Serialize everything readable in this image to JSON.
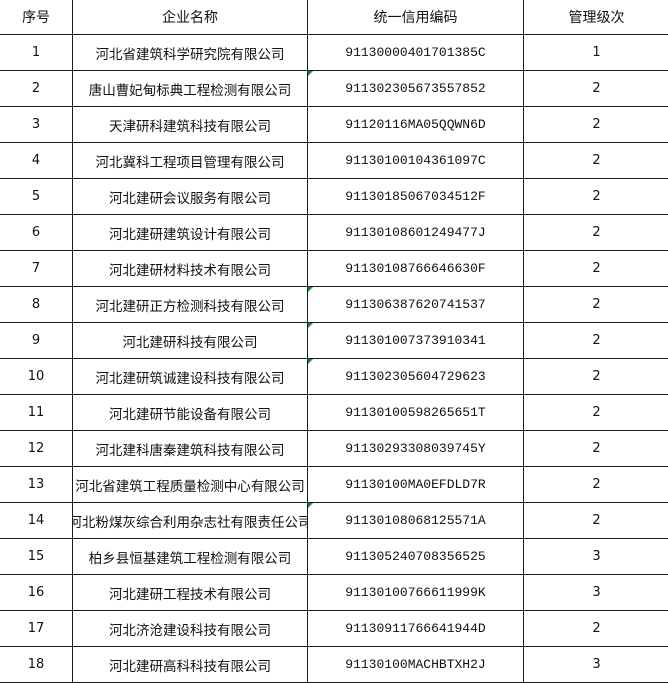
{
  "header": {
    "index": "序号",
    "name": "企业名称",
    "code": "统一信用编码",
    "level": "管理级次"
  },
  "rows": [
    {
      "index": "1",
      "name": "河北省建筑科学研究院有限公司",
      "code": "91130000401701385C",
      "level": "1"
    },
    {
      "index": "2",
      "name": "唐山曹妃甸标典工程检测有限公司",
      "code": "911302305673557852",
      "level": "2"
    },
    {
      "index": "3",
      "name": "天津研科建筑科技有限公司",
      "code": "91120116MA05QQWN6D",
      "level": "2"
    },
    {
      "index": "4",
      "name": "河北冀科工程项目管理有限公司",
      "code": "91130100104361097C",
      "level": "2"
    },
    {
      "index": "5",
      "name": "河北建研会议服务有限公司",
      "code": "91130185067034512F",
      "level": "2"
    },
    {
      "index": "6",
      "name": "河北建研建筑设计有限公司",
      "code": "91130108601249477J",
      "level": "2"
    },
    {
      "index": "7",
      "name": "河北建研材料技术有限公司",
      "code": "91130108766646630F",
      "level": "2"
    },
    {
      "index": "8",
      "name": "河北建研正方检测科技有限公司",
      "code": "911306387620741537",
      "level": "2"
    },
    {
      "index": "9",
      "name": "河北建研科技有限公司",
      "code": "911301007373910341",
      "level": "2"
    },
    {
      "index": "10",
      "name": "河北建研筑诚建设科技有限公司",
      "code": "911302305604729623",
      "level": "2"
    },
    {
      "index": "11",
      "name": "河北建研节能设备有限公司",
      "code": "91130100598265651T",
      "level": "2"
    },
    {
      "index": "12",
      "name": "河北建科唐秦建筑科技有限公司",
      "code": "91130293308039745Y",
      "level": "2"
    },
    {
      "index": "13",
      "name": "河北省建筑工程质量检测中心有限公司",
      "code": "91130100MA0EFDLD7R",
      "level": "2"
    },
    {
      "index": "14",
      "name": "河北粉煤灰综合利用杂志社有限责任公司",
      "code": "91130108068125571A",
      "level": "2"
    },
    {
      "index": "15",
      "name": "柏乡县恒基建筑工程检测有限公司",
      "code": "911305240708356525",
      "level": "3"
    },
    {
      "index": "16",
      "name": "河北建研工程技术有限公司",
      "code": "91130100766611999K",
      "level": "3"
    },
    {
      "index": "17",
      "name": "河北济沧建设科技有限公司",
      "code": "91130911766641944D",
      "level": "2"
    },
    {
      "index": "18",
      "name": "河北建研高科科技有限公司",
      "code": "91130100MACHBTXH2J",
      "level": "3"
    }
  ]
}
